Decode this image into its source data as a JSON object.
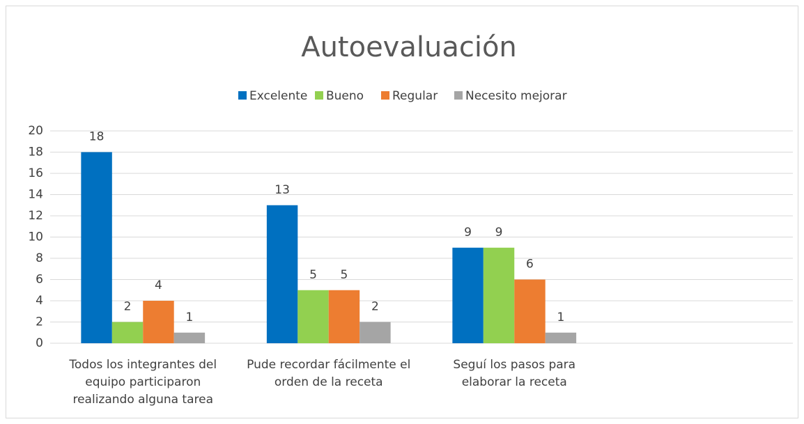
{
  "chart_data": {
    "type": "bar",
    "title": "Autoevaluación",
    "categories": [
      "Todos los integrantes del equipo participaron realizando alguna tarea",
      "Pude recordar fácilmente el orden de la receta",
      "Seguí los pasos para elaborar la receta",
      null
    ],
    "series": [
      {
        "name": "Excelente",
        "color": "#0070c0",
        "values": [
          18,
          13,
          9,
          null
        ]
      },
      {
        "name": "Bueno",
        "color": "#92d050",
        "values": [
          2,
          5,
          9,
          null
        ]
      },
      {
        "name": "Regular",
        "color": "#ed7d31",
        "values": [
          4,
          5,
          6,
          null
        ]
      },
      {
        "name": "Necesito mejorar",
        "color": "#a5a5a5",
        "values": [
          1,
          2,
          1,
          null
        ]
      }
    ],
    "ylim": [
      0,
      20
    ],
    "yticks": [
      0,
      2,
      4,
      6,
      8,
      10,
      12,
      14,
      16,
      18,
      20
    ],
    "grid": true,
    "legend": "top"
  }
}
